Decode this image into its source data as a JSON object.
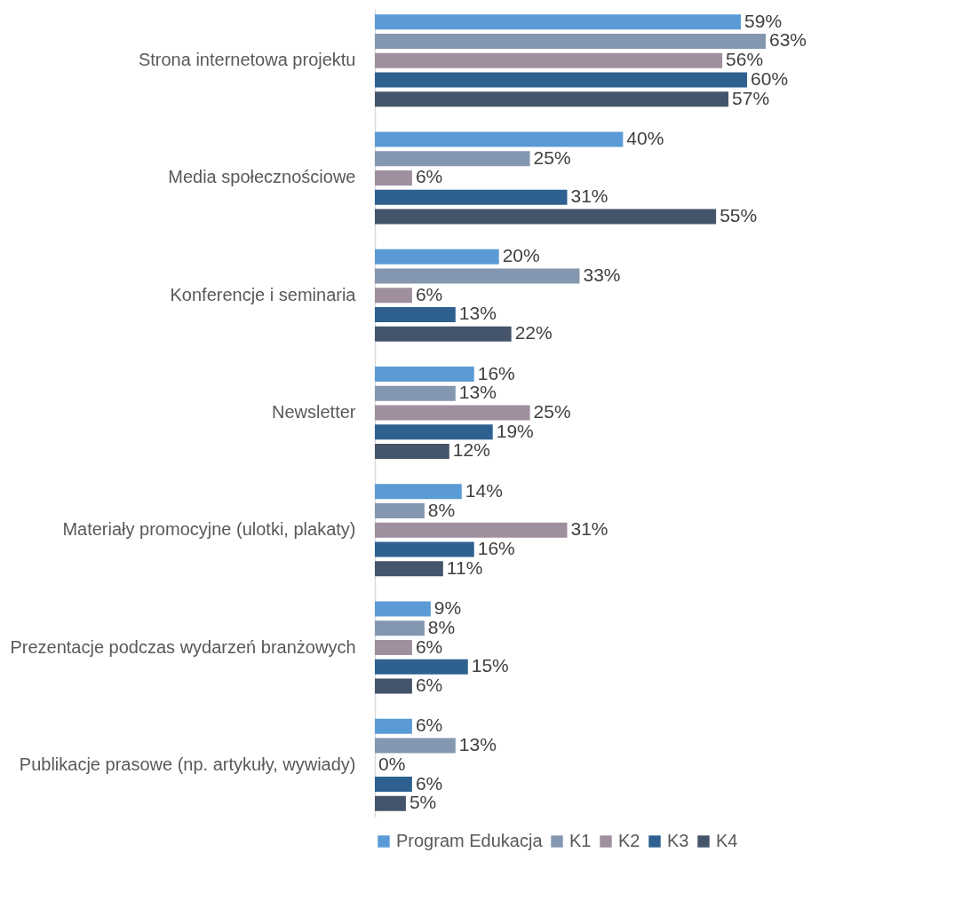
{
  "chart_data": {
    "type": "bar",
    "orientation": "horizontal",
    "legend": "bottom",
    "categories": [
      "Strona internetowa projektu",
      "Media społecznościowe",
      "Konferencje i seminaria",
      "Newsletter",
      "Materiały promocyjne (ulotki, plakaty)",
      "Prezentacje podczas wydarzeń branżowych",
      "Publikacje prasowe (np. artykuły, wywiady)"
    ],
    "series": [
      {
        "name": "Program Edukacja",
        "color": "#5b9bd5",
        "values": [
          59,
          40,
          20,
          16,
          14,
          9,
          6
        ],
        "value_labels": [
          "59%",
          "40%",
          "20%",
          "16%",
          "14%",
          "9%",
          "6%"
        ]
      },
      {
        "name": "K1",
        "color": "#8497b0",
        "values": [
          63,
          25,
          33,
          13,
          8,
          8,
          13
        ],
        "value_labels": [
          "63%",
          "25%",
          "33%",
          "13%",
          "8%",
          "8%",
          "13%"
        ]
      },
      {
        "name": "K2",
        "color": "#a08f9e",
        "values": [
          56,
          6,
          6,
          25,
          31,
          6,
          0
        ],
        "value_labels": [
          "56%",
          "6%",
          "6%",
          "25%",
          "31%",
          "6%",
          "0%"
        ]
      },
      {
        "name": "K3",
        "color": "#2e6190",
        "values": [
          60,
          31,
          13,
          19,
          16,
          15,
          6
        ],
        "value_labels": [
          "60%",
          "31%",
          "13%",
          "19%",
          "16%",
          "15%",
          "6%"
        ]
      },
      {
        "name": "K4",
        "color": "#44546a",
        "values": [
          57,
          55,
          22,
          12,
          11,
          6,
          5
        ],
        "value_labels": [
          "57%",
          "55%",
          "22%",
          "12%",
          "11%",
          "6%",
          "5%"
        ]
      }
    ]
  }
}
